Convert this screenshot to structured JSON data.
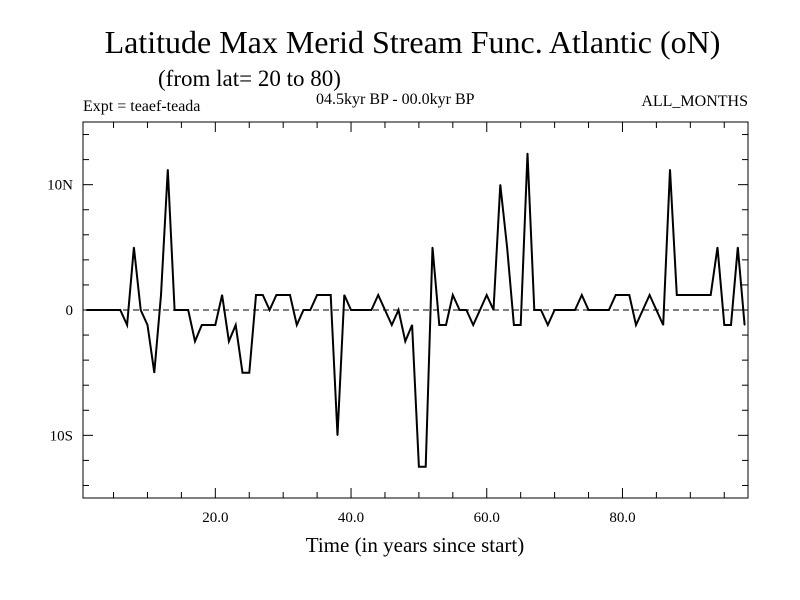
{
  "header": {
    "title": "Latitude Max Merid Stream Func. Atlantic (oN)",
    "subtitle": "(from lat= 20 to 80)",
    "expt": "Expt = teaef-teada",
    "period": "04.5kyr BP - 00.0kyr BP",
    "months": "ALL_MONTHS"
  },
  "chart_data": {
    "type": "line",
    "title": "Latitude Max Merid Stream Func. Atlantic (oN)",
    "subtitle": "(from lat= 20 to 80)",
    "xlabel": "Time (in years since start)",
    "ylabel": "",
    "xlim": [
      0.5,
      98.5
    ],
    "ylim": [
      -15,
      15
    ],
    "grid": false,
    "reference_line": {
      "y": 0,
      "style": "dashed"
    },
    "x_ticks": [
      {
        "value": 20,
        "label": "20.0"
      },
      {
        "value": 40,
        "label": "40.0"
      },
      {
        "value": 60,
        "label": "60.0"
      },
      {
        "value": 80,
        "label": "80.0"
      }
    ],
    "y_ticks": [
      {
        "value": 10,
        "label": "10N"
      },
      {
        "value": 0,
        "label": "0"
      },
      {
        "value": -10,
        "label": "10S"
      }
    ],
    "series": [
      {
        "name": "teaef-teada",
        "x": [
          1,
          2,
          3,
          4,
          5,
          6,
          7,
          8,
          9,
          10,
          11,
          12,
          13,
          14,
          15,
          16,
          17,
          18,
          19,
          20,
          21,
          22,
          23,
          24,
          25,
          26,
          27,
          28,
          29,
          30,
          31,
          32,
          33,
          34,
          35,
          36,
          37,
          38,
          39,
          40,
          41,
          42,
          43,
          44,
          45,
          46,
          47,
          48,
          49,
          50,
          51,
          52,
          53,
          54,
          55,
          56,
          57,
          58,
          59,
          60,
          61,
          62,
          63,
          64,
          65,
          66,
          67,
          68,
          69,
          70,
          71,
          72,
          73,
          74,
          75,
          76,
          77,
          78,
          79,
          80,
          81,
          82,
          83,
          84,
          85,
          86,
          87,
          88,
          89,
          90,
          91,
          92,
          93,
          94,
          95,
          96,
          97,
          98
        ],
        "values": [
          0,
          0,
          0,
          0,
          0,
          0,
          -1.2,
          5,
          0,
          -1.2,
          -5,
          1.2,
          11.2,
          0,
          0,
          0,
          -2.5,
          -1.2,
          -1.2,
          -1.2,
          1.2,
          -2.5,
          -1.2,
          -5,
          -5,
          1.2,
          1.2,
          0,
          1.2,
          1.2,
          1.2,
          -1.2,
          0,
          0,
          1.2,
          1.2,
          1.2,
          -10,
          1.2,
          0,
          0,
          0,
          0,
          1.2,
          0,
          -1.2,
          0,
          -2.5,
          -1.2,
          -12.5,
          -12.5,
          5,
          -1.2,
          -1.2,
          1.2,
          0,
          0,
          -1.2,
          0,
          1.2,
          0,
          10,
          5,
          -1.2,
          -1.2,
          12.5,
          0,
          0,
          -1.2,
          0,
          0,
          0,
          0,
          1.2,
          0,
          0,
          0,
          0,
          1.2,
          1.2,
          1.2,
          -1.2,
          0,
          1.2,
          0,
          -1.2,
          11.2,
          1.2,
          1.2,
          1.2,
          1.2,
          1.2,
          1.2,
          5,
          -1.2,
          -1.2,
          5,
          -1.2
        ]
      }
    ]
  }
}
